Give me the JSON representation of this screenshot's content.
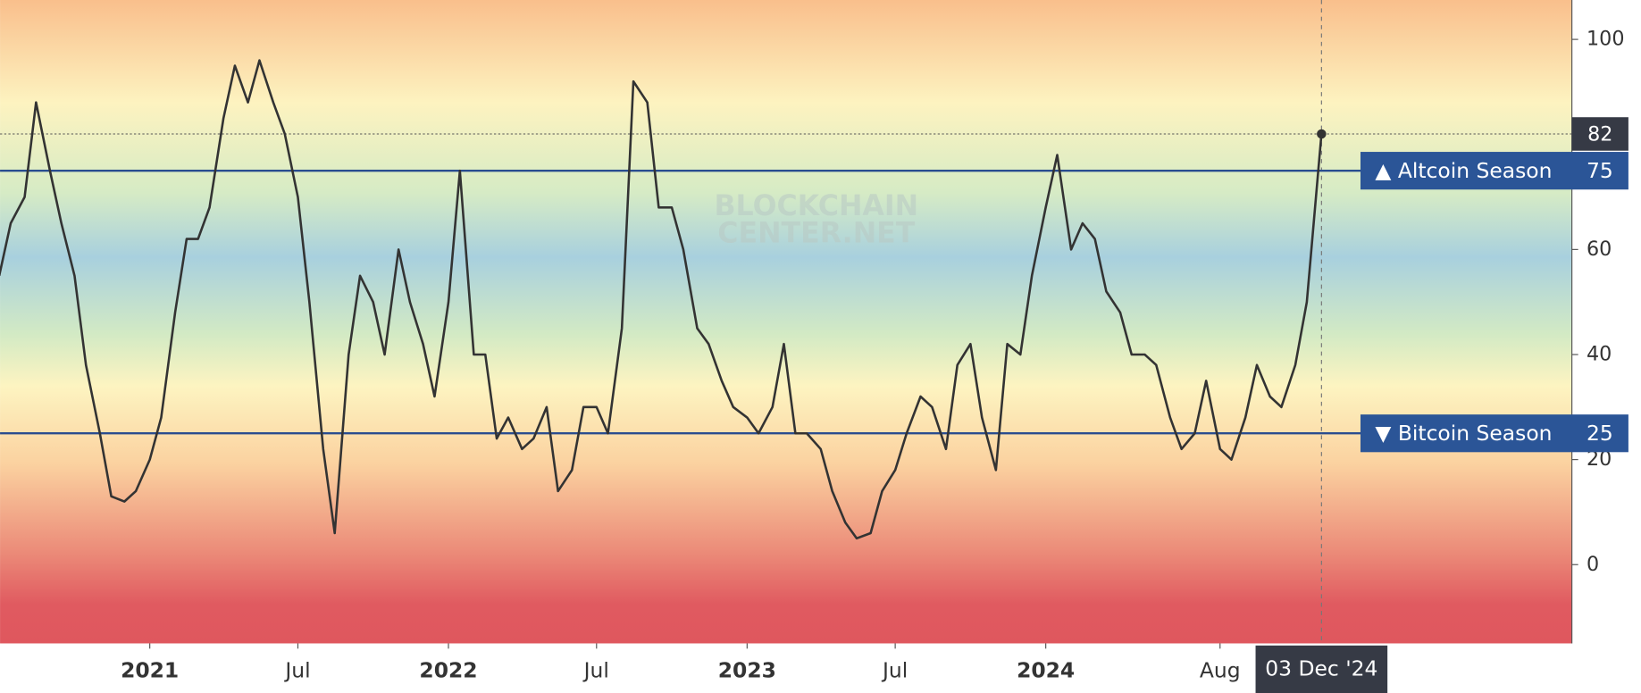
{
  "chart_data": {
    "type": "line",
    "color": "#333333",
    "x": [
      "2020-07-01",
      "2020-07-15",
      "2020-08-01",
      "2020-08-15",
      "2020-09-01",
      "2020-09-15",
      "2020-10-01",
      "2020-10-15",
      "2020-11-01",
      "2020-11-15",
      "2020-12-01",
      "2020-12-15",
      "2021-01-01",
      "2021-01-15",
      "2021-02-01",
      "2021-02-15",
      "2021-03-01",
      "2021-03-15",
      "2021-04-01",
      "2021-04-15",
      "2021-05-01",
      "2021-05-15",
      "2021-06-01",
      "2021-06-15",
      "2021-07-01",
      "2021-07-15",
      "2021-08-01",
      "2021-08-15",
      "2021-09-01",
      "2021-09-15",
      "2021-10-01",
      "2021-10-15",
      "2021-11-01",
      "2021-11-15",
      "2021-12-01",
      "2021-12-15",
      "2022-01-01",
      "2022-01-15",
      "2022-02-01",
      "2022-02-15",
      "2022-03-01",
      "2022-03-15",
      "2022-04-01",
      "2022-04-15",
      "2022-05-01",
      "2022-05-15",
      "2022-06-01",
      "2022-06-15",
      "2022-07-01",
      "2022-07-15",
      "2022-08-01",
      "2022-08-15",
      "2022-09-01",
      "2022-09-15",
      "2022-10-01",
      "2022-10-15",
      "2022-11-01",
      "2022-11-15",
      "2022-12-01",
      "2022-12-15",
      "2023-01-01",
      "2023-01-15",
      "2023-02-01",
      "2023-02-15",
      "2023-03-01",
      "2023-03-15",
      "2023-04-01",
      "2023-04-15",
      "2023-05-01",
      "2023-05-15",
      "2023-06-01",
      "2023-06-15",
      "2023-07-01",
      "2023-07-15",
      "2023-08-01",
      "2023-08-15",
      "2023-09-01",
      "2023-09-15",
      "2023-10-01",
      "2023-10-15",
      "2023-11-01",
      "2023-11-15",
      "2023-12-01",
      "2023-12-15",
      "2024-01-01",
      "2024-01-15",
      "2024-02-01",
      "2024-02-15",
      "2024-03-01",
      "2024-03-15",
      "2024-04-01",
      "2024-04-15",
      "2024-05-01",
      "2024-05-15",
      "2024-06-01",
      "2024-06-15",
      "2024-07-01",
      "2024-07-15",
      "2024-08-01",
      "2024-08-15",
      "2024-09-01",
      "2024-09-15",
      "2024-10-01",
      "2024-10-15",
      "2024-11-01",
      "2024-11-15",
      "2024-12-03"
    ],
    "values": [
      55,
      65,
      70,
      88,
      75,
      65,
      55,
      38,
      25,
      13,
      12,
      14,
      20,
      28,
      48,
      62,
      62,
      68,
      85,
      95,
      88,
      96,
      88,
      82,
      70,
      50,
      22,
      6,
      40,
      55,
      50,
      40,
      60,
      50,
      42,
      32,
      50,
      75,
      40,
      40,
      24,
      28,
      22,
      24,
      30,
      14,
      18,
      30,
      30,
      25,
      45,
      92,
      88,
      68,
      68,
      60,
      45,
      42,
      35,
      30,
      28,
      25,
      30,
      42,
      25,
      25,
      22,
      14,
      8,
      5,
      6,
      14,
      18,
      25,
      32,
      30,
      22,
      38,
      42,
      28,
      18,
      42,
      40,
      55,
      68,
      78,
      60,
      65,
      62,
      52,
      48,
      40,
      40,
      38,
      28,
      22,
      25,
      35,
      22,
      20,
      28,
      38,
      32,
      30,
      38,
      50,
      82
    ],
    "xlim": [
      "2020-07-02",
      "2025-10-05"
    ],
    "xticks": [
      {
        "value": "2021-01-01",
        "label": "2021"
      },
      {
        "value": "2021-07-01",
        "label": "Jul"
      },
      {
        "value": "2022-01-01",
        "label": "2022"
      },
      {
        "value": "2022-07-01",
        "label": "Jul"
      },
      {
        "value": "2023-01-01",
        "label": "2023"
      },
      {
        "value": "2023-07-01",
        "label": "Jul"
      },
      {
        "value": "2024-01-01",
        "label": "2024"
      },
      {
        "value": "2024-08-01",
        "label": "Aug"
      }
    ],
    "ylim": [
      -15,
      107.5
    ],
    "yticks": [
      0,
      20,
      40,
      60,
      100
    ],
    "hlines": [
      {
        "value": 75,
        "label": "▲ Altcoin Season",
        "color": "#2a4d8f"
      },
      {
        "value": 25,
        "label": "▼ Bitcoin Season",
        "color": "#2a4d8f"
      }
    ],
    "crosshair_label": "03 Dec '24",
    "watermark": [
      "BLOCKCHAIN",
      "CENTER.NET"
    ]
  }
}
